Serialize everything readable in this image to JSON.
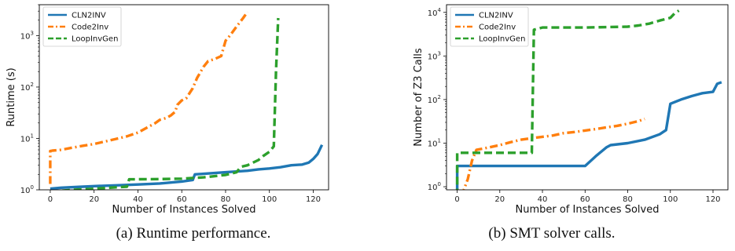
{
  "chart_data": [
    {
      "type": "line",
      "caption": "(a) Runtime performance.",
      "xlabel": "Number of Instances Solved",
      "ylabel": "Runtime (s)",
      "xlim": [
        -5,
        127
      ],
      "ylim": [
        1,
        4000
      ],
      "yscale": "log",
      "xticks": [
        0,
        20,
        40,
        60,
        80,
        100,
        120
      ],
      "yticks": [
        1,
        10,
        100,
        1000
      ],
      "grid": false,
      "legend_position": "top-left",
      "series": [
        {
          "name": "CLN2INV",
          "color": "#1f77b4",
          "style": "solid",
          "points": [
            [
              0,
              1.05
            ],
            [
              5,
              1.1
            ],
            [
              15,
              1.15
            ],
            [
              20,
              1.18
            ],
            [
              30,
              1.22
            ],
            [
              40,
              1.27
            ],
            [
              50,
              1.33
            ],
            [
              60,
              1.45
            ],
            [
              65,
              1.55
            ],
            [
              66,
              2.0
            ],
            [
              70,
              2.05
            ],
            [
              80,
              2.2
            ],
            [
              90,
              2.35
            ],
            [
              95,
              2.5
            ],
            [
              100,
              2.6
            ],
            [
              105,
              2.75
            ],
            [
              110,
              3.0
            ],
            [
              115,
              3.1
            ],
            [
              118,
              3.4
            ],
            [
              120,
              4.0
            ],
            [
              122,
              5.0
            ],
            [
              124,
              7.5
            ]
          ]
        },
        {
          "name": "Code2Inv",
          "color": "#ff7f0e",
          "style": "dashdot",
          "points": [
            [
              0,
              1.3
            ],
            [
              0,
              5.7
            ],
            [
              1,
              5.8
            ],
            [
              5,
              6.0
            ],
            [
              10,
              6.6
            ],
            [
              15,
              7.2
            ],
            [
              20,
              7.8
            ],
            [
              25,
              8.7
            ],
            [
              30,
              9.8
            ],
            [
              35,
              11
            ],
            [
              40,
              13
            ],
            [
              45,
              17
            ],
            [
              48,
              20
            ],
            [
              50,
              23
            ],
            [
              53,
              25
            ],
            [
              55,
              28
            ],
            [
              57,
              33
            ],
            [
              58,
              45
            ],
            [
              60,
              55
            ],
            [
              62,
              60
            ],
            [
              63,
              70
            ],
            [
              65,
              95
            ],
            [
              67,
              150
            ],
            [
              70,
              250
            ],
            [
              72,
              320
            ],
            [
              75,
              350
            ],
            [
              78,
              400
            ],
            [
              80,
              800
            ],
            [
              82,
              1000
            ],
            [
              85,
              1500
            ],
            [
              88,
              2200
            ],
            [
              90,
              2900
            ]
          ]
        },
        {
          "name": "LoopInvGen",
          "color": "#2ca02c",
          "style": "dashed",
          "points": [
            [
              0,
              0.92
            ],
            [
              10,
              1.0
            ],
            [
              20,
              1.05
            ],
            [
              30,
              1.12
            ],
            [
              35,
              1.15
            ],
            [
              36,
              1.6
            ],
            [
              50,
              1.62
            ],
            [
              60,
              1.65
            ],
            [
              70,
              1.75
            ],
            [
              80,
              1.95
            ],
            [
              85,
              2.2
            ],
            [
              87,
              2.8
            ],
            [
              90,
              3.0
            ],
            [
              92,
              3.3
            ],
            [
              95,
              3.8
            ],
            [
              97,
              4.5
            ],
            [
              100,
              5.5
            ],
            [
              102,
              7.0
            ],
            [
              103,
              200
            ],
            [
              104,
              2200
            ]
          ]
        }
      ]
    },
    {
      "type": "line",
      "caption": "(b) SMT solver calls.",
      "xlabel": "Number of Instances Solved",
      "ylabel": "Number of Z3 Calls",
      "xlim": [
        -5,
        127
      ],
      "ylim": [
        0.85,
        15000
      ],
      "yscale": "log",
      "xticks": [
        0,
        20,
        40,
        60,
        80,
        100,
        120
      ],
      "yticks": [
        1,
        10,
        100,
        1000,
        10000
      ],
      "grid": false,
      "legend_position": "top-left",
      "series": [
        {
          "name": "CLN2INV",
          "color": "#1f77b4",
          "style": "solid",
          "points": [
            [
              0,
              0.6
            ],
            [
              0,
              3
            ],
            [
              20,
              3
            ],
            [
              40,
              3
            ],
            [
              60,
              3
            ],
            [
              65,
              5
            ],
            [
              70,
              8
            ],
            [
              72,
              9
            ],
            [
              80,
              10
            ],
            [
              88,
              12
            ],
            [
              95,
              16
            ],
            [
              98,
              20
            ],
            [
              100,
              80
            ],
            [
              105,
              100
            ],
            [
              110,
              120
            ],
            [
              115,
              140
            ],
            [
              120,
              150
            ],
            [
              122,
              230
            ],
            [
              124,
              250
            ]
          ]
        },
        {
          "name": "Code2Inv",
          "color": "#ff7f0e",
          "style": "dashdot",
          "points": [
            [
              2,
              0.6
            ],
            [
              5,
              1.5
            ],
            [
              7,
              4
            ],
            [
              9,
              7
            ],
            [
              15,
              8
            ],
            [
              20,
              9
            ],
            [
              25,
              10.5
            ],
            [
              30,
              12
            ],
            [
              35,
              13
            ],
            [
              40,
              14
            ],
            [
              45,
              15
            ],
            [
              50,
              17
            ],
            [
              55,
              18
            ],
            [
              60,
              19.5
            ],
            [
              65,
              21
            ],
            [
              70,
              23
            ],
            [
              75,
              25
            ],
            [
              80,
              28
            ],
            [
              85,
              32
            ],
            [
              88,
              36
            ]
          ]
        },
        {
          "name": "LoopInvGen",
          "color": "#2ca02c",
          "style": "dashed",
          "points": [
            [
              0,
              0.6
            ],
            [
              0,
              6
            ],
            [
              20,
              6
            ],
            [
              35,
              6
            ],
            [
              36,
              4000
            ],
            [
              40,
              4500
            ],
            [
              60,
              4500
            ],
            [
              80,
              4700
            ],
            [
              85,
              5000
            ],
            [
              90,
              5500
            ],
            [
              95,
              6500
            ],
            [
              100,
              7500
            ],
            [
              102,
              9500
            ],
            [
              104,
              11000
            ]
          ]
        }
      ]
    }
  ]
}
